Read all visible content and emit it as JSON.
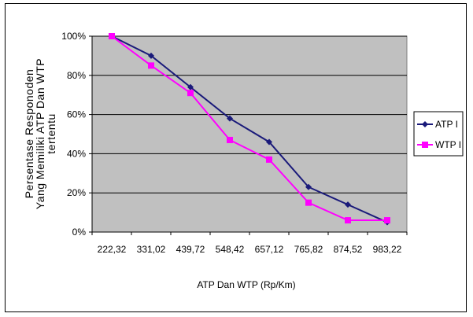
{
  "chart_data": {
    "type": "line",
    "title": "",
    "xlabel": "ATP Dan WTP (Rp/Km)",
    "ylabel_lines": [
      "Persentase Responoden",
      "Yang Memiliki ATP Dan WTP",
      "tertentu"
    ],
    "categories": [
      "222,32",
      "331,02",
      "439,72",
      "548,42",
      "657,12",
      "765,82",
      "874,52",
      "983,22"
    ],
    "y_ticks": [
      "0%",
      "20%",
      "40%",
      "60%",
      "80%",
      "100%"
    ],
    "ylim": [
      0,
      100
    ],
    "grid": true,
    "legend_position": "right",
    "series": [
      {
        "name": "ATP I",
        "color": "#1a1a7a",
        "marker": "diamond",
        "values": [
          100,
          90,
          74,
          58,
          46,
          23,
          14,
          5
        ]
      },
      {
        "name": "WTP I",
        "color": "#ff00ff",
        "marker": "square",
        "values": [
          100,
          85,
          71,
          47,
          37,
          15,
          6,
          6
        ]
      }
    ],
    "plot_background": "#c0c0c0"
  }
}
